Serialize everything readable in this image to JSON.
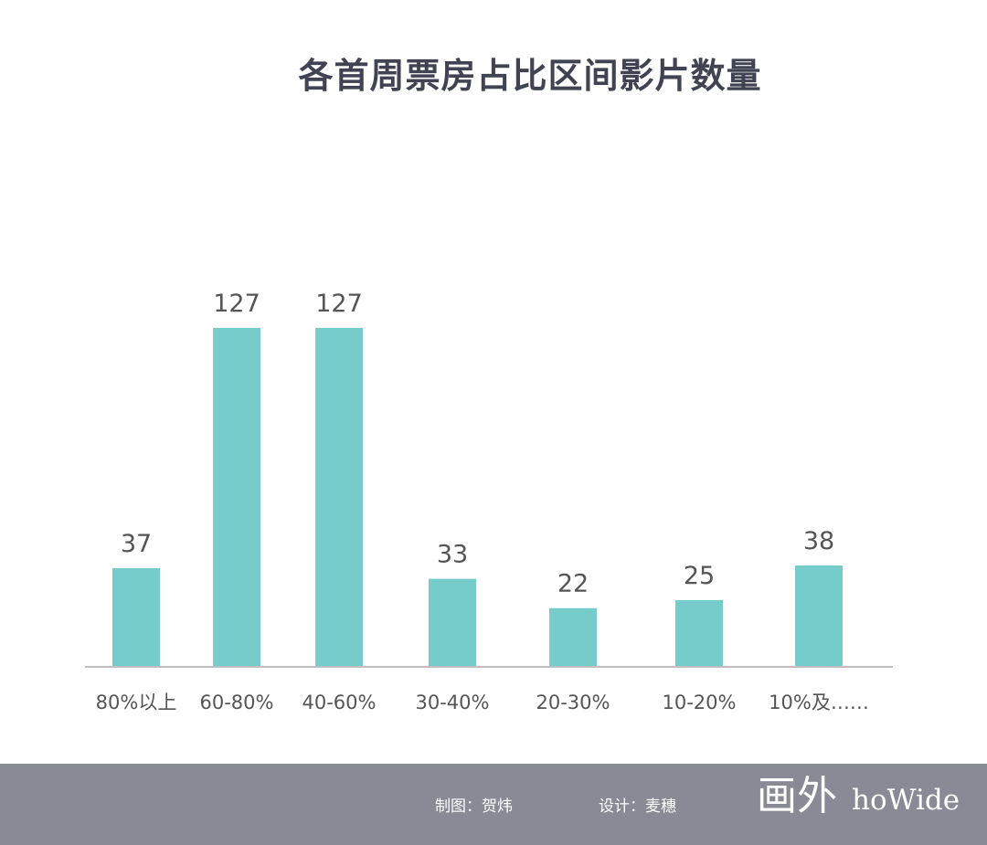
{
  "chart_data": {
    "type": "bar",
    "title": "各首周票房占比区间影片数量",
    "categories": [
      "80%以上",
      "60-80%",
      "40-60%",
      "30-40%",
      "20-30%",
      "10-20%",
      "10%及……"
    ],
    "values": [
      37,
      127,
      127,
      33,
      22,
      25,
      38
    ],
    "value_labels": [
      "37",
      "127",
      "127",
      "33",
      "22",
      "25",
      "38"
    ],
    "xlabel": "",
    "ylabel": "",
    "ylim": [
      0,
      127
    ],
    "grid": false,
    "colors": {
      "bar": "#76cbcb",
      "baseline": "#bfbfbf",
      "label": "#555555",
      "title": "#404452"
    }
  },
  "footer": {
    "maker": "制图：贺炜",
    "designer": "设计：麦穗",
    "brand_mark": "画外",
    "brand_word": "hoWide",
    "background": "#898a96"
  }
}
